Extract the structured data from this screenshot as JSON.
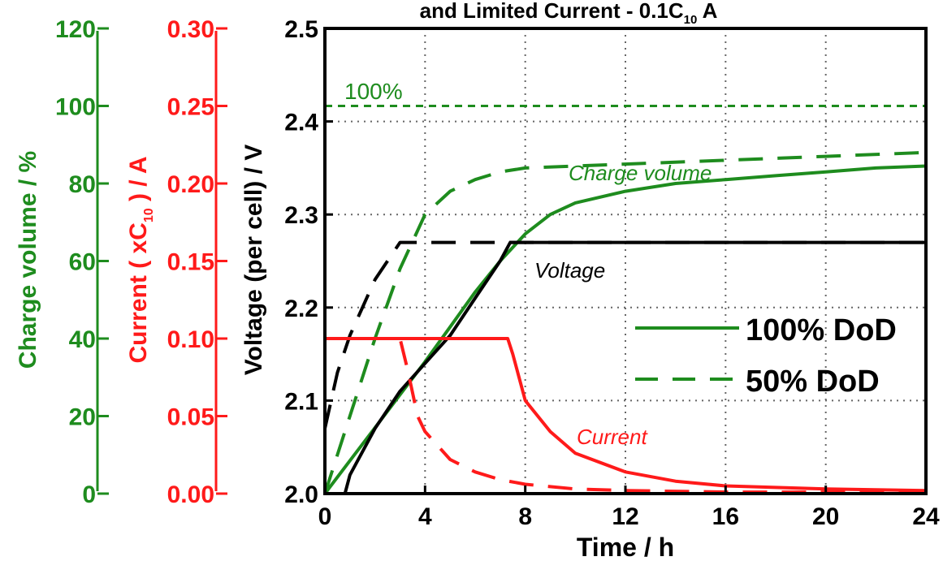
{
  "colors": {
    "charge": "#1e8c1e",
    "current": "#ff1a1a",
    "voltage": "#000000",
    "grid": "#666666"
  },
  "chart_data": {
    "type": "line",
    "title_fragment": "and Limited Current - 0.1C",
    "title_subscript": "10",
    "title_tail": " A",
    "xlabel": "Time / h",
    "xlim": [
      0,
      24
    ],
    "x_ticks": [
      "0",
      "4",
      "8",
      "12",
      "16",
      "20",
      "24"
    ],
    "axes": {
      "voltage": {
        "label": "Voltage (per cell) / V",
        "lim": [
          2.0,
          2.5
        ],
        "ticks": [
          "2.0",
          "2.1",
          "2.2",
          "2.3",
          "2.4",
          "2.5"
        ]
      },
      "current": {
        "label_pre": "Current ( xC",
        "label_sub": "10",
        "label_post": " ) / A",
        "lim": [
          0.0,
          0.3
        ],
        "ticks": [
          "0.00",
          "0.05",
          "0.10",
          "0.15",
          "0.20",
          "0.25",
          "0.30"
        ]
      },
      "charge": {
        "label": "Charge volume / %",
        "lim": [
          0,
          120
        ],
        "ticks": [
          "0",
          "20",
          "40",
          "60",
          "80",
          "100",
          "120"
        ]
      }
    },
    "grid": true,
    "annotations": {
      "charge_label": "Charge volume",
      "voltage_label": "Voltage",
      "current_label": "Current",
      "full_charge_label": "100%"
    },
    "reference_line": {
      "axis": "charge",
      "value": 100
    },
    "legend": {
      "placement": "right",
      "entries": [
        {
          "label": "100% DoD",
          "style": "solid"
        },
        {
          "label": "50% DoD",
          "style": "dashed"
        }
      ]
    },
    "series": [
      {
        "quantity": "charge",
        "dod": "100%",
        "axis": "charge",
        "x": [
          0,
          1,
          2,
          3,
          4,
          5,
          6,
          7,
          8,
          9,
          10,
          12,
          14,
          16,
          18,
          20,
          22,
          24
        ],
        "y": [
          0,
          8.5,
          17,
          25.5,
          34,
          43,
          52,
          60,
          67,
          72,
          75,
          78,
          80,
          81,
          82,
          83,
          84,
          84.5
        ]
      },
      {
        "quantity": "charge",
        "dod": "50%",
        "axis": "charge",
        "x": [
          0,
          1,
          2,
          3,
          4,
          5,
          6,
          7,
          8,
          10,
          12,
          16,
          20,
          24
        ],
        "y": [
          0,
          20,
          40,
          58,
          72,
          78,
          81,
          83,
          84,
          84.5,
          85,
          86,
          87,
          88
        ]
      },
      {
        "quantity": "voltage",
        "dod": "100%",
        "axis": "voltage",
        "x": [
          0.8,
          1,
          2,
          3,
          4,
          5,
          6,
          7,
          7.4,
          24
        ],
        "y": [
          2.0,
          2.02,
          2.07,
          2.11,
          2.14,
          2.17,
          2.21,
          2.25,
          2.27,
          2.27
        ]
      },
      {
        "quantity": "voltage",
        "dod": "50%",
        "axis": "voltage",
        "x": [
          0,
          0.5,
          1,
          2,
          3,
          24
        ],
        "y": [
          2.07,
          2.13,
          2.17,
          2.23,
          2.27,
          2.27
        ]
      },
      {
        "quantity": "current",
        "dod": "100%",
        "axis": "current",
        "x": [
          0,
          7.3,
          7.5,
          8,
          9,
          10,
          12,
          14,
          16,
          20,
          24
        ],
        "y": [
          0.1,
          0.1,
          0.09,
          0.06,
          0.04,
          0.026,
          0.014,
          0.008,
          0.005,
          0.003,
          0.002
        ]
      },
      {
        "quantity": "current",
        "dod": "50%",
        "axis": "current",
        "x": [
          0,
          3.0,
          3.3,
          3.7,
          4,
          5,
          6,
          7,
          8,
          10,
          12,
          16,
          24
        ],
        "y": [
          0.1,
          0.1,
          0.08,
          0.05,
          0.04,
          0.022,
          0.014,
          0.009,
          0.006,
          0.003,
          0.002,
          0.001,
          0.001
        ]
      }
    ]
  }
}
